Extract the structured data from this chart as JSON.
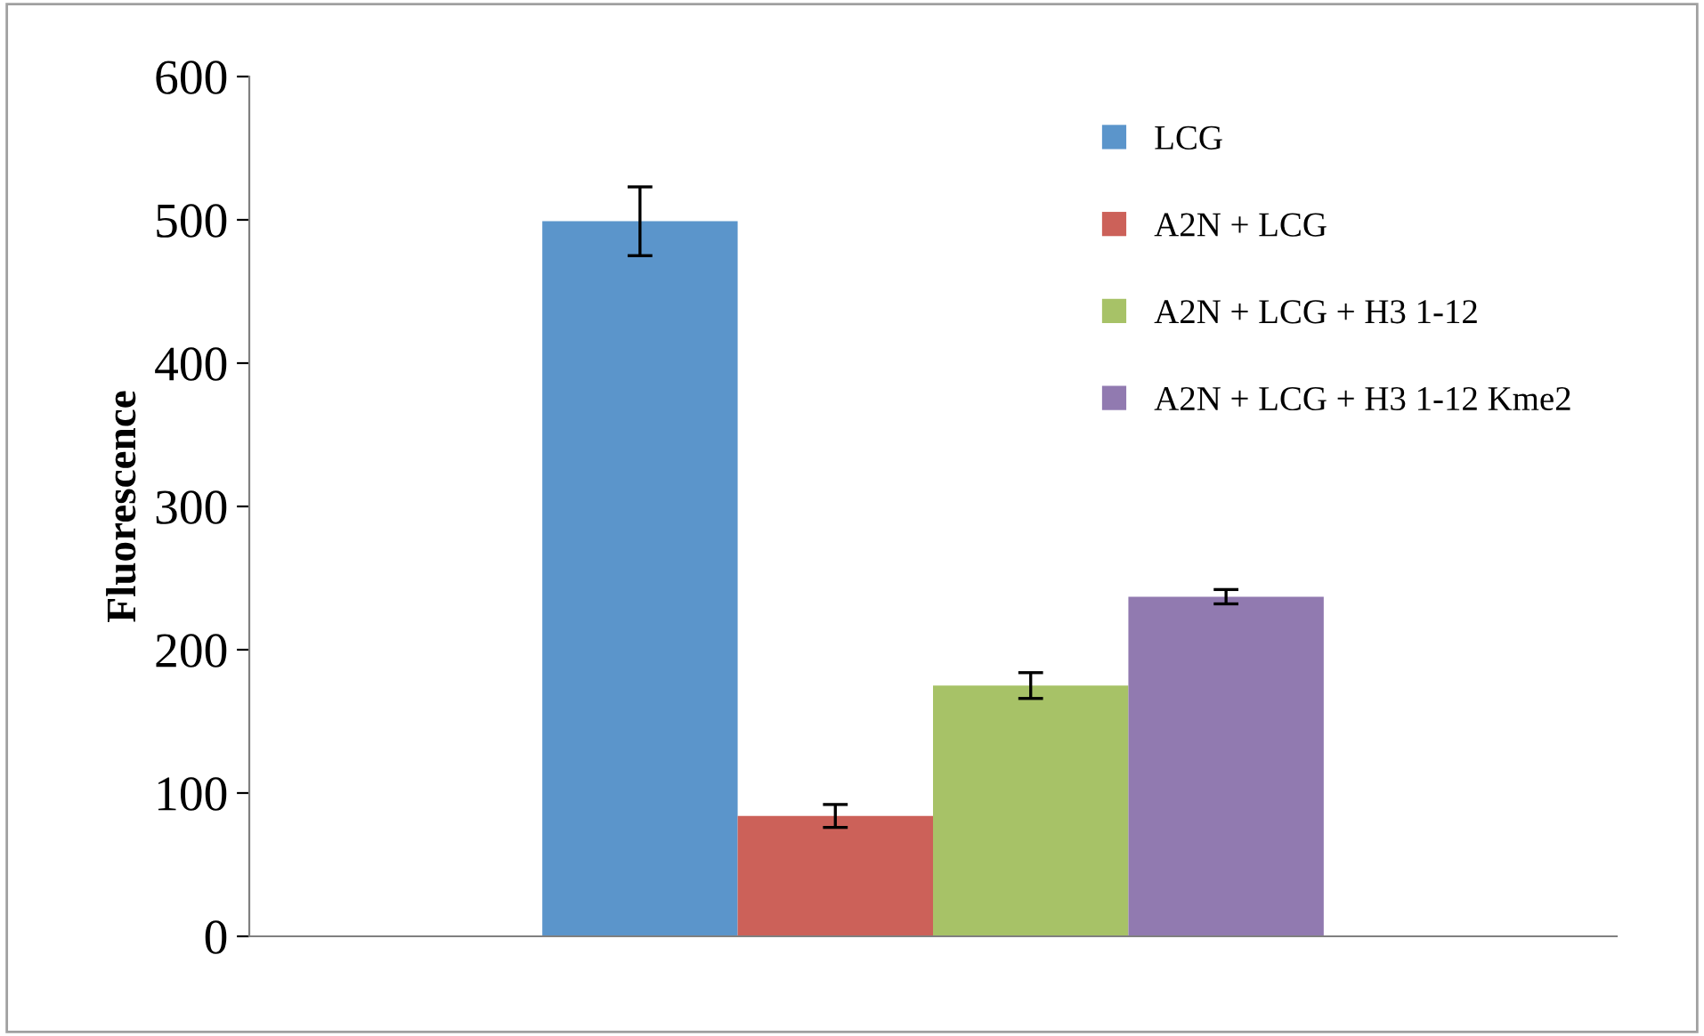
{
  "chart_data": {
    "type": "bar",
    "ylabel": "Fluorescence",
    "categories": [
      null
    ],
    "series": [
      {
        "name": "LCG",
        "color": "#5b95cb",
        "values": [
          499
        ],
        "errors": [
          24
        ]
      },
      {
        "name": "A2N + LCG",
        "color": "#cc6159",
        "values": [
          84
        ],
        "errors": [
          8
        ]
      },
      {
        "name": "A2N + LCG + H3 1-12",
        "color": "#a7c267",
        "values": [
          175
        ],
        "errors": [
          9
        ]
      },
      {
        "name": "A2N + LCG + H3 1-12 Kme2",
        "color": "#917ab0",
        "values": [
          237
        ],
        "errors": [
          5
        ]
      }
    ],
    "ylim": [
      0,
      600
    ],
    "yticks": [
      0,
      100,
      200,
      300,
      400,
      500,
      600
    ],
    "grid": false,
    "legend": "top right"
  }
}
